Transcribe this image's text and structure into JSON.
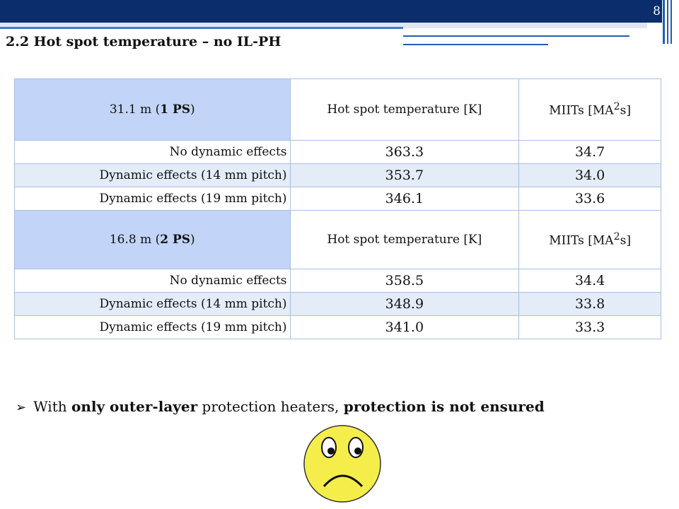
{
  "slide": {
    "number": "8",
    "title": "2.2 Hot spot temperature – no IL-PH"
  },
  "table": {
    "sections": [
      {
        "header": {
          "case_prefix": "31.1 m (",
          "case_bold": "1 PS",
          "case_suffix": ")",
          "col2": "Hot spot temperature [K]",
          "col3_prefix": "MIITs [MA",
          "col3_sup": "2",
          "col3_suffix": "s]"
        },
        "rows": [
          {
            "label": "No dynamic effects",
            "temp": "363.3",
            "miits": "34.7"
          },
          {
            "label": "Dynamic effects (14 mm pitch)",
            "temp": "353.7",
            "miits": "34.0"
          },
          {
            "label": "Dynamic effects (19 mm pitch)",
            "temp": "346.1",
            "miits": "33.6"
          }
        ]
      },
      {
        "header": {
          "case_prefix": "16.8 m (",
          "case_bold": "2 PS",
          "case_suffix": ")",
          "col2": "Hot spot temperature [K]",
          "col3_prefix": "MIITs [MA",
          "col3_sup": "2",
          "col3_suffix": "s]"
        },
        "rows": [
          {
            "label": "No dynamic effects",
            "temp": "358.5",
            "miits": "34.4"
          },
          {
            "label": "Dynamic effects (14 mm pitch)",
            "temp": "348.9",
            "miits": "33.8"
          },
          {
            "label": "Dynamic effects (19 mm pitch)",
            "temp": "341.0",
            "miits": "33.3"
          }
        ]
      }
    ]
  },
  "bullet": {
    "text_1": "With ",
    "bold_1": "only outer-layer",
    "text_2": " protection heaters, ",
    "bold_2": "protection is not ensured"
  },
  "colors": {
    "header_bar": "#0b2d6b",
    "header_cell": "#c2d4f7",
    "alt_row": "#e3ecf7",
    "smiley": "#f5ee4a"
  },
  "icons": {
    "bullet": "arrow-bullet-icon",
    "face": "sad-face-icon"
  }
}
